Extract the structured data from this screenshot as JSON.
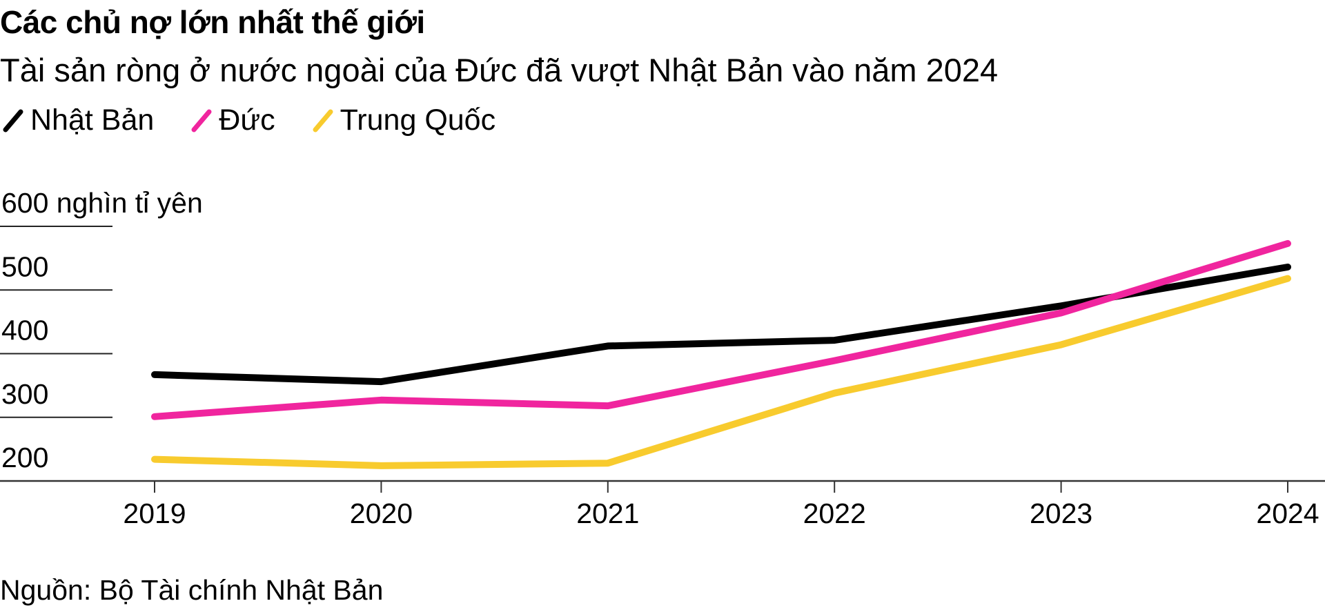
{
  "header": {
    "title": "Các chủ nợ lớn nhất thế giới",
    "subtitle": "Tài sản ròng ở nước ngoài của Đức đã vượt Nhật Bản vào năm 2024"
  },
  "legend": [
    {
      "label": "Nhật Bản",
      "color": "#000000",
      "icon": "diagonal-line-icon"
    },
    {
      "label": "Đức",
      "color": "#F0259E",
      "icon": "diagonal-line-icon"
    },
    {
      "label": "Trung Quốc",
      "color": "#F8CB2E",
      "icon": "diagonal-line-icon"
    }
  ],
  "footer": {
    "source": "Nguồn: Bộ Tài chính Nhật Bản"
  },
  "chart_data": {
    "type": "line",
    "title": "Các chủ nợ lớn nhất thế giới",
    "subtitle": "Tài sản ròng ở nước ngoài của Đức đã vượt Nhật Bản vào năm 2024",
    "xlabel": "",
    "ylabel": "nghìn tỉ yên",
    "x": [
      "2019",
      "2020",
      "2021",
      "2022",
      "2023",
      "2024"
    ],
    "ylim": [
      200,
      600
    ],
    "yticks": [
      200,
      300,
      400,
      500,
      600
    ],
    "ytick_labels": [
      "200",
      "300",
      "400",
      "500",
      "600 nghìn tỉ yên"
    ],
    "grid": true,
    "legend_position": "top-left",
    "series": [
      {
        "name": "Nhật Bản",
        "color": "#000000",
        "values": [
          367,
          356,
          412,
          421,
          475,
          536
        ]
      },
      {
        "name": "Đức",
        "color": "#F0259E",
        "values": [
          301,
          327,
          318,
          389,
          464,
          573
        ]
      },
      {
        "name": "Trung Quốc",
        "color": "#F8CB2E",
        "values": [
          234,
          224,
          228,
          338,
          414,
          518
        ]
      }
    ],
    "source": "Nguồn: Bộ Tài chính Nhật Bản"
  }
}
